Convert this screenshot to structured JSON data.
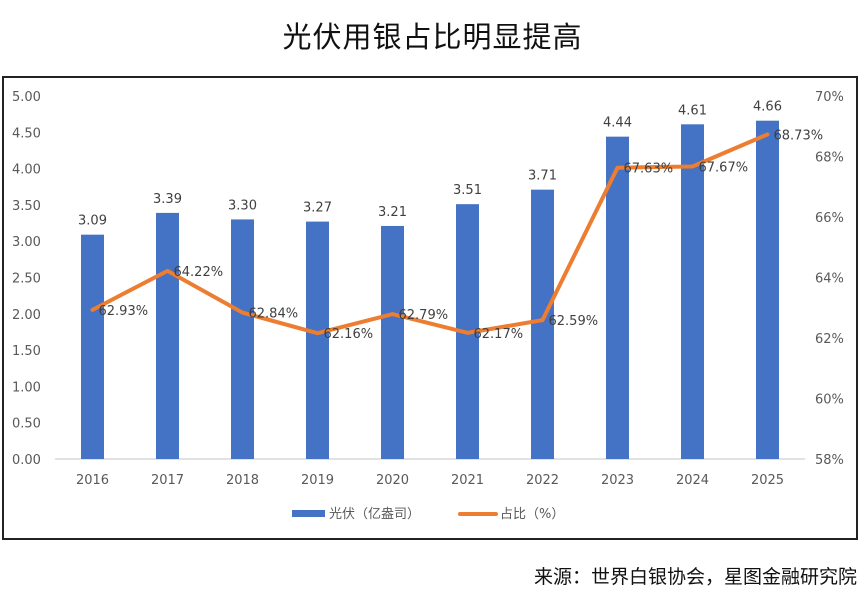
{
  "title": "光伏用银占比明显提高",
  "source": "来源：世界白银协会，星图金融研究院",
  "chart_data": {
    "type": "bar+line",
    "title": "光伏用银占比明显提高",
    "categories": [
      "2016",
      "2017",
      "2018",
      "2019",
      "2020",
      "2021",
      "2022",
      "2023",
      "2024",
      "2025"
    ],
    "series": [
      {
        "name": "光伏（亿盎司）",
        "type": "bar",
        "axis": "left",
        "color": "#4472C4",
        "values": [
          3.09,
          3.39,
          3.3,
          3.27,
          3.21,
          3.51,
          3.71,
          4.44,
          4.61,
          4.66
        ],
        "labels": [
          "3.09",
          "3.39",
          "3.30",
          "3.27",
          "3.21",
          "3.51",
          "3.71",
          "4.44",
          "4.61",
          "4.66"
        ]
      },
      {
        "name": "占比（%）",
        "type": "line",
        "axis": "right",
        "color": "#ED7D31",
        "values": [
          62.93,
          64.22,
          62.84,
          62.16,
          62.79,
          62.17,
          62.59,
          67.63,
          67.67,
          68.73
        ],
        "labels": [
          "62.93%",
          "64.22%",
          "62.84%",
          "62.16%",
          "62.79%",
          "62.17%",
          "62.59%",
          "67.63%",
          "67.67%",
          "68.73%"
        ]
      }
    ],
    "left_axis": {
      "ylim": [
        0,
        5
      ],
      "ticks": [
        "0.00",
        "0.50",
        "1.00",
        "1.50",
        "2.00",
        "2.50",
        "3.00",
        "3.50",
        "4.00",
        "4.50",
        "5.00"
      ]
    },
    "right_axis": {
      "ylim": [
        58,
        70
      ],
      "ticks": [
        "58%",
        "60%",
        "62%",
        "64%",
        "66%",
        "68%",
        "70%"
      ]
    },
    "grid": false,
    "legend": {
      "position": "bottom",
      "entries": [
        "光伏（亿盎司）",
        "占比（%）"
      ]
    }
  }
}
